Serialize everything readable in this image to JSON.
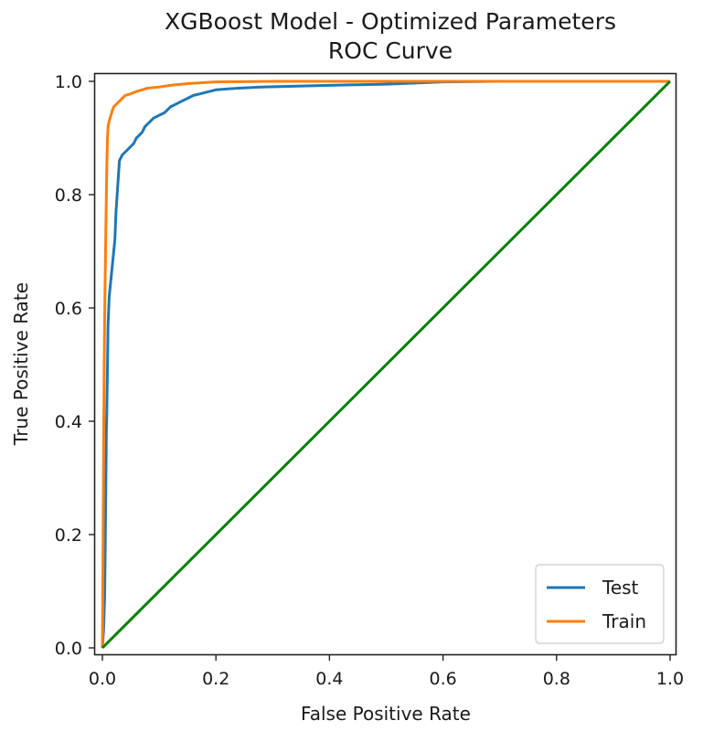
{
  "chart_data": {
    "type": "line",
    "title": "XGBoost Model - Optimized Parameters",
    "subtitle": "ROC Curve",
    "xlabel": "False Positive Rate",
    "ylabel": "True Positive Rate",
    "xlim": [
      0.0,
      1.0
    ],
    "ylim": [
      0.0,
      1.0
    ],
    "xticks": [
      "0.0",
      "0.2",
      "0.4",
      "0.6",
      "0.8",
      "1.0"
    ],
    "yticks": [
      "0.0",
      "0.2",
      "0.4",
      "0.6",
      "0.8",
      "1.0"
    ],
    "grid": false,
    "legend_position": "lower-right",
    "series": [
      {
        "name": "Test",
        "color": "#1f77b4",
        "points": [
          [
            0.0,
            0.0
          ],
          [
            0.002,
            0.03
          ],
          [
            0.004,
            0.09
          ],
          [
            0.005,
            0.18
          ],
          [
            0.006,
            0.28
          ],
          [
            0.007,
            0.38
          ],
          [
            0.008,
            0.43
          ],
          [
            0.009,
            0.5
          ],
          [
            0.01,
            0.57
          ],
          [
            0.012,
            0.62
          ],
          [
            0.014,
            0.64
          ],
          [
            0.016,
            0.66
          ],
          [
            0.018,
            0.68
          ],
          [
            0.02,
            0.7
          ],
          [
            0.022,
            0.72
          ],
          [
            0.024,
            0.77
          ],
          [
            0.026,
            0.8
          ],
          [
            0.028,
            0.83
          ],
          [
            0.03,
            0.86
          ],
          [
            0.035,
            0.87
          ],
          [
            0.04,
            0.875
          ],
          [
            0.045,
            0.88
          ],
          [
            0.05,
            0.885
          ],
          [
            0.055,
            0.89
          ],
          [
            0.06,
            0.9
          ],
          [
            0.065,
            0.905
          ],
          [
            0.07,
            0.91
          ],
          [
            0.075,
            0.92
          ],
          [
            0.08,
            0.925
          ],
          [
            0.085,
            0.93
          ],
          [
            0.09,
            0.935
          ],
          [
            0.1,
            0.94
          ],
          [
            0.11,
            0.945
          ],
          [
            0.12,
            0.955
          ],
          [
            0.13,
            0.96
          ],
          [
            0.14,
            0.965
          ],
          [
            0.15,
            0.97
          ],
          [
            0.16,
            0.975
          ],
          [
            0.18,
            0.98
          ],
          [
            0.2,
            0.985
          ],
          [
            0.24,
            0.988
          ],
          [
            0.28,
            0.99
          ],
          [
            0.32,
            0.991
          ],
          [
            0.36,
            0.992
          ],
          [
            0.4,
            0.993
          ],
          [
            0.45,
            0.994
          ],
          [
            0.5,
            0.995
          ],
          [
            0.55,
            0.997
          ],
          [
            0.6,
            0.999
          ],
          [
            0.7,
            1.0
          ],
          [
            0.85,
            1.0
          ],
          [
            1.0,
            1.0
          ]
        ]
      },
      {
        "name": "Train",
        "color": "#ff7f0e",
        "points": [
          [
            0.0,
            0.0
          ],
          [
            0.001,
            0.15
          ],
          [
            0.002,
            0.32
          ],
          [
            0.003,
            0.48
          ],
          [
            0.004,
            0.58
          ],
          [
            0.005,
            0.66
          ],
          [
            0.006,
            0.73
          ],
          [
            0.007,
            0.8
          ],
          [
            0.008,
            0.86
          ],
          [
            0.009,
            0.9
          ],
          [
            0.01,
            0.92
          ],
          [
            0.012,
            0.93
          ],
          [
            0.015,
            0.94
          ],
          [
            0.018,
            0.95
          ],
          [
            0.02,
            0.955
          ],
          [
            0.025,
            0.96
          ],
          [
            0.03,
            0.965
          ],
          [
            0.035,
            0.97
          ],
          [
            0.04,
            0.975
          ],
          [
            0.05,
            0.978
          ],
          [
            0.06,
            0.982
          ],
          [
            0.07,
            0.985
          ],
          [
            0.08,
            0.988
          ],
          [
            0.1,
            0.99
          ],
          [
            0.12,
            0.993
          ],
          [
            0.15,
            0.996
          ],
          [
            0.2,
            0.999
          ],
          [
            0.3,
            1.0
          ],
          [
            0.6,
            1.0
          ],
          [
            1.0,
            1.0
          ]
        ]
      },
      {
        "color": "#008000",
        "points": [
          [
            0.0,
            0.0
          ],
          [
            1.0,
            1.0
          ]
        ]
      }
    ]
  }
}
